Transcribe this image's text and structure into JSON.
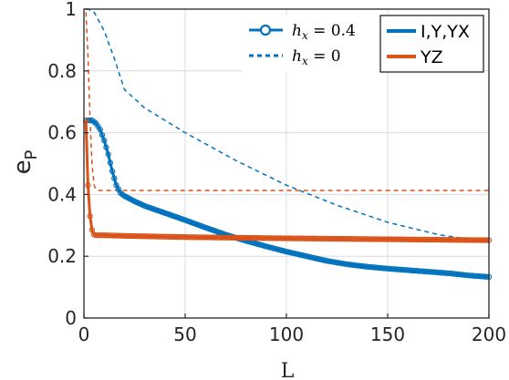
{
  "chart_data": {
    "type": "line",
    "xlabel": "L",
    "ylabel_main": "e",
    "ylabel_sub": "P",
    "xlim": [
      0,
      200
    ],
    "ylim": [
      0,
      1
    ],
    "xticks": [
      "0",
      "50",
      "100",
      "150",
      "200"
    ],
    "yticks": [
      "0",
      "0.2",
      "0.4",
      "0.6",
      "0.8",
      "1"
    ],
    "grid": true,
    "legend_style": {
      "position": "top-center",
      "entries": [
        {
          "label": "h_x = 0.4",
          "display": "hx = 0.4",
          "style": "solid-circles"
        },
        {
          "label": "h_x = 0",
          "display": "hx = 0",
          "style": "dashed"
        }
      ]
    },
    "legend_series": {
      "position": "top-right",
      "entries": [
        {
          "label": "I,Y,YX",
          "color": "#0072BD"
        },
        {
          "label": "YZ",
          "color": "#D95319"
        }
      ]
    },
    "series": [
      {
        "name": "I,Y,YX",
        "variant": "h_x = 0.4",
        "color": "#0072BD",
        "line": "solid",
        "marker": "circle",
        "x": [
          1,
          2,
          4,
          6,
          8,
          10,
          12,
          14,
          16,
          18,
          20,
          25,
          30,
          40,
          50,
          60,
          70,
          80,
          90,
          100,
          110,
          120,
          130,
          140,
          150,
          160,
          170,
          180,
          190,
          200
        ],
        "y": [
          0.64,
          0.64,
          0.64,
          0.63,
          0.61,
          0.575,
          0.53,
          0.475,
          0.43,
          0.405,
          0.395,
          0.378,
          0.363,
          0.34,
          0.317,
          0.293,
          0.27,
          0.25,
          0.232,
          0.215,
          0.2,
          0.185,
          0.174,
          0.166,
          0.16,
          0.155,
          0.15,
          0.145,
          0.138,
          0.133
        ]
      },
      {
        "name": "YZ",
        "variant": "h_x = 0.4",
        "color": "#D95319",
        "line": "solid",
        "marker": "circle",
        "x": [
          1,
          2,
          3,
          4,
          5,
          6,
          8,
          10,
          20,
          50,
          100,
          150,
          200
        ],
        "y": [
          0.64,
          0.43,
          0.33,
          0.285,
          0.27,
          0.268,
          0.268,
          0.268,
          0.266,
          0.262,
          0.258,
          0.255,
          0.252
        ]
      },
      {
        "name": "I,Y,YX",
        "variant": "h_x = 0",
        "color": "#0072BD",
        "line": "dashed",
        "marker": "none",
        "x": [
          1,
          2,
          5,
          10,
          15,
          20,
          30,
          50,
          75,
          100,
          125,
          150,
          175,
          200
        ],
        "y": [
          1.0,
          1.0,
          0.99,
          0.93,
          0.84,
          0.74,
          0.68,
          0.6,
          0.51,
          0.43,
          0.365,
          0.31,
          0.27,
          0.245
        ]
      },
      {
        "name": "YZ",
        "variant": "h_x = 0",
        "color": "#D95319",
        "line": "dashed",
        "marker": "none",
        "x": [
          1,
          2,
          3,
          4,
          5,
          6,
          8,
          10,
          20,
          50,
          100,
          150,
          200
        ],
        "y": [
          0.99,
          0.85,
          0.65,
          0.5,
          0.43,
          0.415,
          0.413,
          0.413,
          0.413,
          0.413,
          0.413,
          0.413,
          0.413
        ]
      }
    ]
  }
}
